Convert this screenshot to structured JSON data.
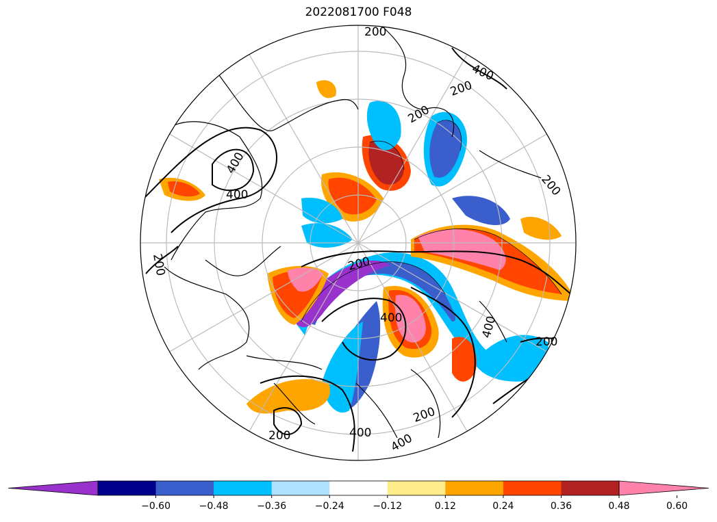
{
  "title": "2022081700 F048",
  "colorbar": {
    "colors": [
      "#9932CC",
      "#00008B",
      "#3A5FCD",
      "#00BFFF",
      "#B0E2FF",
      "#FFFFFF",
      "#FFEC8B",
      "#FFA500",
      "#FF4500",
      "#B22222",
      "#FF82AB"
    ],
    "ticks": [
      "−0.60",
      "−0.48",
      "−0.36",
      "−0.24",
      "−0.12",
      "0.12",
      "0.24",
      "0.36",
      "0.48",
      "0.60"
    ]
  },
  "contour_labels": [
    "200",
    "400",
    "200",
    "200",
    "400",
    "400",
    "200",
    "200",
    "200",
    "400",
    "200",
    "400",
    "200",
    "400",
    "200",
    "400"
  ],
  "projection": "north-polar-stereographic",
  "graticule": "on"
}
